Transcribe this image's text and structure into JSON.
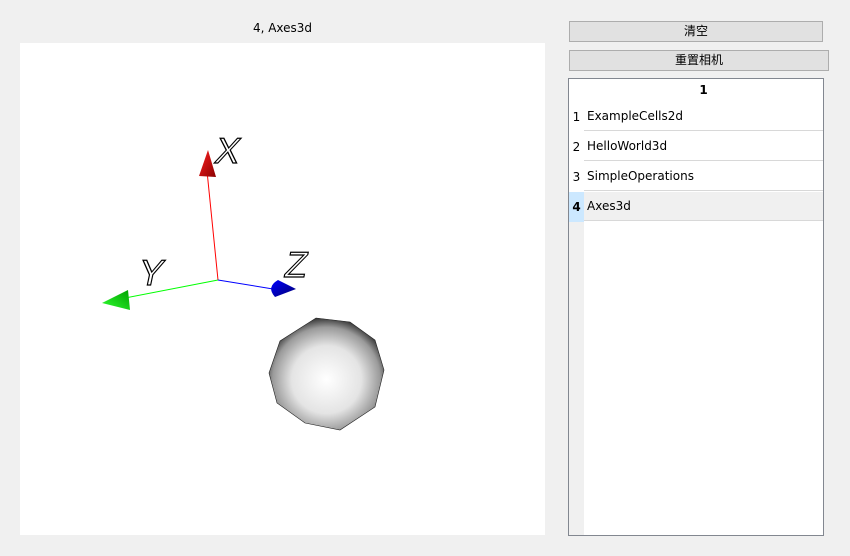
{
  "view": {
    "title": "4, Axes3d",
    "axis_labels": {
      "x": "X",
      "y": "Y",
      "z": "Z"
    },
    "axis_colors": {
      "x": "#ff0000",
      "y": "#00ff00",
      "z": "#0000ff"
    }
  },
  "buttons": {
    "clear_label": "清空",
    "reset_camera_label": "重置相机"
  },
  "table": {
    "column_header": "1",
    "rows": [
      {
        "num": "1",
        "value": "ExampleCells2d"
      },
      {
        "num": "2",
        "value": "HelloWorld3d"
      },
      {
        "num": "3",
        "value": "SimpleOperations"
      },
      {
        "num": "4",
        "value": "Axes3d"
      }
    ],
    "selected_row": "4"
  }
}
